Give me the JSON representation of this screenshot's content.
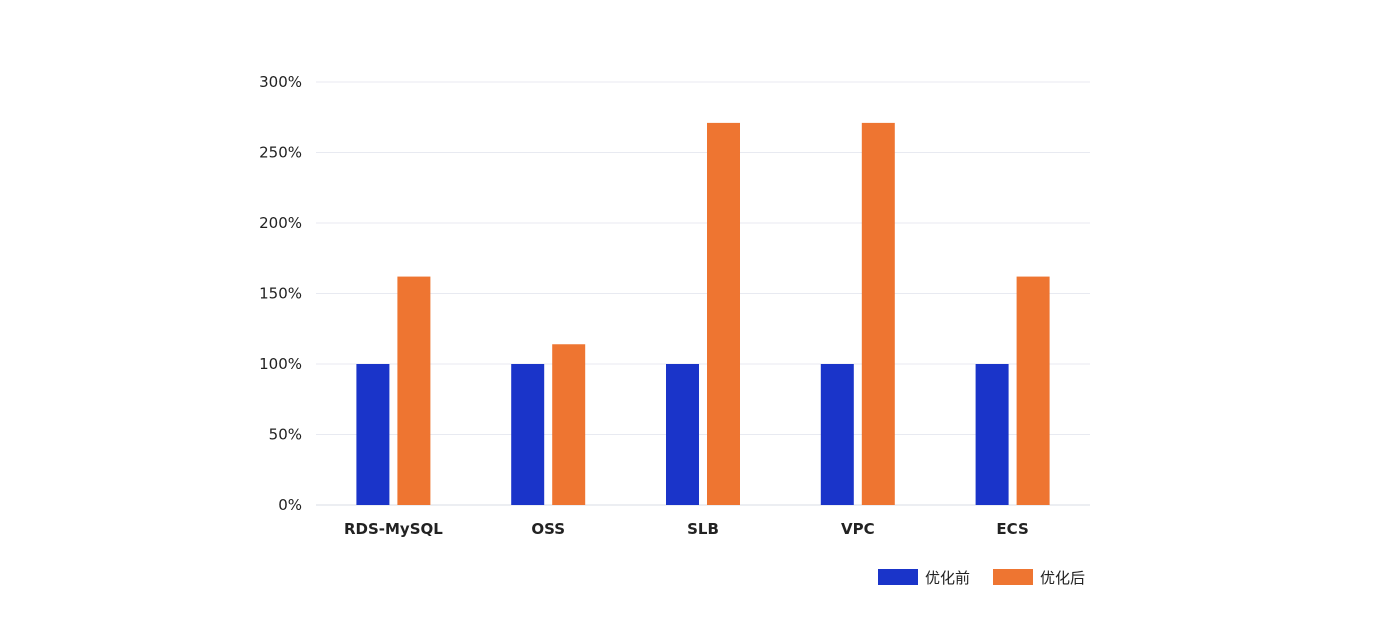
{
  "chart_data": {
    "type": "bar",
    "title": "",
    "xlabel": "",
    "ylabel": "",
    "categories": [
      "RDS-MySQL",
      "OSS",
      "SLB",
      "VPC",
      "ECS"
    ],
    "series": [
      {
        "name": "优化前",
        "color": "#1A34C9",
        "values": [
          100,
          100,
          100,
          100,
          100
        ]
      },
      {
        "name": "优化后",
        "color": "#EE7531",
        "values": [
          162,
          114,
          271,
          271,
          162
        ]
      }
    ],
    "ylim": [
      0,
      300
    ],
    "yticks": [
      "0%",
      "50%",
      "100%",
      "150%",
      "200%",
      "250%",
      "300%"
    ],
    "grid": true,
    "legend_position": "bottom-right"
  }
}
